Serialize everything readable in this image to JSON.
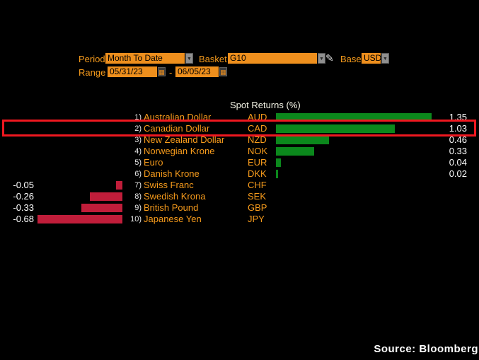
{
  "controls": {
    "period_label": "Period",
    "period_value": "Month To Date",
    "basket_label": "Basket",
    "basket_value": "G10",
    "base_label": "Base",
    "base_value": "USD",
    "range_label": "Range",
    "range_start": "05/31/23",
    "range_separator": "-",
    "range_end": "06/05/23"
  },
  "icons": {
    "dropdown_arrow": "▼",
    "calendar": "▦",
    "pencil": "✎"
  },
  "colors": {
    "accent_orange": "#f89c1c",
    "field_background": "#ee8f1d",
    "positive_bar": "#0b881c",
    "negative_bar": "#c01d3a",
    "highlight_border": "#ef1820",
    "value_text": "#ffffff"
  },
  "chart_data": {
    "type": "bar",
    "orientation": "horizontal",
    "title": "Spot Returns (%)",
    "xlim": [
      -0.68,
      1.35
    ],
    "legend": "none",
    "grid": "off",
    "categories": [
      "Australian Dollar",
      "Canadian Dollar",
      "New Zealand Dollar",
      "Norwegian Krone",
      "Euro",
      "Danish Krone",
      "Swiss Franc",
      "Swedish Krona",
      "British Pound",
      "Japanese Yen"
    ],
    "tickers": [
      "AUD",
      "CAD",
      "NZD",
      "NOK",
      "EUR",
      "DKK",
      "CHF",
      "SEK",
      "GBP",
      "JPY"
    ],
    "values": [
      1.35,
      1.03,
      0.46,
      0.33,
      0.04,
      0.02,
      -0.05,
      -0.26,
      -0.33,
      -0.68
    ],
    "rows": [
      {
        "n": "1)",
        "name": "Australian Dollar",
        "ticker": "AUD",
        "value": 1.35,
        "label": "1.35"
      },
      {
        "n": "2)",
        "name": "Canadian Dollar",
        "ticker": "CAD",
        "value": 1.03,
        "label": "1.03",
        "highlight": true
      },
      {
        "n": "3)",
        "name": "New Zealand Dollar",
        "ticker": "NZD",
        "value": 0.46,
        "label": "0.46"
      },
      {
        "n": "4)",
        "name": "Norwegian Krone",
        "ticker": "NOK",
        "value": 0.33,
        "label": "0.33"
      },
      {
        "n": "5)",
        "name": "Euro",
        "ticker": "EUR",
        "value": 0.04,
        "label": "0.04"
      },
      {
        "n": "6)",
        "name": "Danish Krone",
        "ticker": "DKK",
        "value": 0.02,
        "label": "0.02"
      },
      {
        "n": "7)",
        "name": "Swiss Franc",
        "ticker": "CHF",
        "value": -0.05,
        "label": "-0.05"
      },
      {
        "n": "8)",
        "name": "Swedish Krona",
        "ticker": "SEK",
        "value": -0.26,
        "label": "-0.26"
      },
      {
        "n": "9)",
        "name": "British Pound",
        "ticker": "GBP",
        "value": -0.33,
        "label": "-0.33"
      },
      {
        "n": "10)",
        "name": "Japanese Yen",
        "ticker": "JPY",
        "value": -0.68,
        "label": "-0.68"
      }
    ]
  },
  "source": "Source:  Bloomberg"
}
